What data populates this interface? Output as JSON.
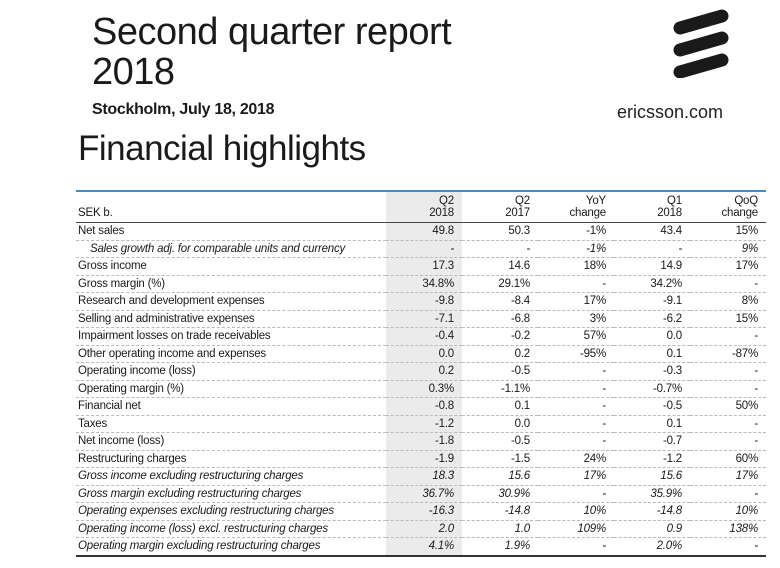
{
  "header": {
    "title_line1": "Second quarter report",
    "title_line2": "2018",
    "location_date": "Stockholm, July 18, 2018",
    "section_title": "Financial highlights",
    "website": "ericsson.com",
    "logo": "ericsson-logo",
    "accent_color": "#3a8fd0"
  },
  "table": {
    "columns": [
      {
        "l1": "",
        "l2": "SEK b."
      },
      {
        "l1": "Q2",
        "l2": "2018"
      },
      {
        "l1": "Q2",
        "l2": "2017"
      },
      {
        "l1": "YoY",
        "l2": "change"
      },
      {
        "l1": "Q1",
        "l2": "2018"
      },
      {
        "l1": "QoQ",
        "l2": "change"
      }
    ],
    "rows": [
      {
        "label": "Net sales",
        "v": [
          "49.8",
          "50.3",
          "-1%",
          "43.4",
          "15%"
        ]
      },
      {
        "label": "Sales growth adj. for comparable units and currency",
        "v": [
          "-",
          "-",
          "-1%",
          "-",
          "9%"
        ],
        "style": "indent-italic"
      },
      {
        "label": "Gross income",
        "v": [
          "17.3",
          "14.6",
          "18%",
          "14.9",
          "17%"
        ]
      },
      {
        "label": "Gross margin (%)",
        "v": [
          "34.8%",
          "29.1%",
          "-",
          "34.2%",
          "-"
        ]
      },
      {
        "label": "Research and development expenses",
        "v": [
          "-9.8",
          "-8.4",
          "17%",
          "-9.1",
          "8%"
        ]
      },
      {
        "label": "Selling and administrative expenses",
        "v": [
          "-7.1",
          "-6.8",
          "3%",
          "-6.2",
          "15%"
        ]
      },
      {
        "label": "Impairment losses on trade receivables",
        "v": [
          "-0.4",
          "-0.2",
          "57%",
          "0.0",
          "-"
        ]
      },
      {
        "label": "Other operating income and expenses",
        "v": [
          "0.0",
          "0.2",
          "-95%",
          "0.1",
          "-87%"
        ]
      },
      {
        "label": "Operating income (loss)",
        "v": [
          "0.2",
          "-0.5",
          "-",
          "-0.3",
          "-"
        ]
      },
      {
        "label": "Operating margin (%)",
        "v": [
          "0.3%",
          "-1.1%",
          "-",
          "-0.7%",
          "-"
        ]
      },
      {
        "label": "Financial net",
        "v": [
          "-0.8",
          "0.1",
          "-",
          "-0.5",
          "50%"
        ]
      },
      {
        "label": "Taxes",
        "v": [
          "-1.2",
          "0.0",
          "-",
          "0.1",
          "-"
        ]
      },
      {
        "label": "Net income (loss)",
        "v": [
          "-1.8",
          "-0.5",
          "-",
          "-0.7",
          "-"
        ]
      },
      {
        "label": "Restructuring charges",
        "v": [
          "-1.9",
          "-1.5",
          "24%",
          "-1.2",
          "60%"
        ]
      },
      {
        "label": "Gross income excluding restructuring charges",
        "v": [
          "18.3",
          "15.6",
          "17%",
          "15.6",
          "17%"
        ],
        "style": "italic"
      },
      {
        "label": "Gross margin excluding restructuring charges",
        "v": [
          "36.7%",
          "30.9%",
          "-",
          "35.9%",
          "-"
        ],
        "style": "italic"
      },
      {
        "label": "Operating expenses excluding restructuring charges",
        "v": [
          "-16.3",
          "-14.8",
          "10%",
          "-14.8",
          "10%"
        ],
        "style": "italic"
      },
      {
        "label": "Operating income (loss) excl. restructuring charges",
        "v": [
          "2.0",
          "1.0",
          "109%",
          "0.9",
          "138%"
        ],
        "style": "italic"
      },
      {
        "label": "Operating margin excluding restructuring charges",
        "v": [
          "4.1%",
          "1.9%",
          "-",
          "2.0%",
          "-"
        ],
        "style": "italic"
      }
    ]
  }
}
